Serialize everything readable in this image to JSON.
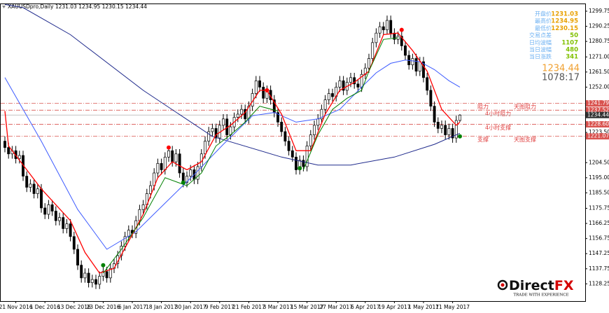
{
  "chart_data": {
    "type": "candlestick",
    "title": "XAUUSDpro,Daily",
    "categories": [
      null,
      null,
      null,
      "21 Nov 2016",
      null,
      null,
      null,
      null,
      null,
      null,
      null,
      "1 Dec 2016",
      null,
      null,
      null,
      null,
      null,
      null,
      null,
      "13 Dec 2016",
      null,
      null,
      null,
      null,
      null,
      null,
      null,
      "23 Dec 2016",
      null,
      null,
      null,
      null,
      null,
      null,
      null,
      "6 Jan 2017",
      null,
      null,
      null,
      null,
      null,
      null,
      null,
      "18 Jan 2017",
      null,
      null,
      null,
      null,
      null,
      null,
      null,
      "30 Jan 2017",
      null,
      null,
      null,
      null,
      null,
      null,
      null,
      "9 Feb 2017",
      null,
      null,
      null,
      null,
      null,
      null,
      null,
      "21 Feb 2017",
      null,
      null,
      null,
      null,
      null,
      null,
      null,
      "3 Mar 2017",
      null,
      null,
      null,
      null,
      null,
      null,
      null,
      "15 Mar 2017",
      null,
      null,
      null,
      null,
      null,
      null,
      null,
      "27 Mar 2017",
      null,
      null,
      null,
      null,
      null,
      null,
      null,
      "6 Apr 2017",
      null,
      null,
      null,
      null,
      null,
      null,
      null,
      "19 Apr 2017",
      null,
      null,
      null,
      null,
      null,
      null,
      null,
      "1 May 2017",
      null,
      null,
      null,
      null,
      null,
      null,
      null,
      "11 May 2017",
      null,
      null
    ],
    "open": [
      1218,
      1214,
      1210,
      1212,
      1207,
      1209,
      1196,
      1189,
      1191,
      1185,
      1188,
      1176,
      1172,
      1178,
      1174,
      1168,
      1170,
      1163,
      1166,
      1158,
      1150,
      1140,
      1132,
      1135,
      1129,
      1131,
      1128,
      1133,
      1136,
      1132,
      1138,
      1141,
      1146,
      1152,
      1158,
      1162,
      1160,
      1168,
      1175,
      1178,
      1185,
      1190,
      1198,
      1204,
      1200,
      1208,
      1212,
      1205,
      1210,
      1198,
      1192,
      1196,
      1200,
      1194,
      1202,
      1210,
      1218,
      1224,
      1226,
      1220,
      1228,
      1232,
      1222,
      1227,
      1233,
      1235,
      1238,
      1232,
      1240,
      1248,
      1256,
      1252,
      1245,
      1250,
      1244,
      1236,
      1230,
      1224,
      1218,
      1212,
      1208,
      1200,
      1206,
      1202,
      1215,
      1222,
      1228,
      1232,
      1238,
      1244,
      1248,
      1246,
      1252,
      1256,
      1250,
      1255,
      1258,
      1254,
      1252,
      1260,
      1264,
      1270,
      1280,
      1286,
      1290,
      1288,
      1294,
      1286,
      1282,
      1284,
      1278,
      1272,
      1266,
      1270,
      1262,
      1268,
      1258,
      1250,
      1240,
      1230,
      1226,
      1228,
      1222,
      1226,
      1220,
      1231.03
    ],
    "high": [
      1221,
      1217,
      1215,
      1215,
      1212,
      1212,
      1199,
      1194,
      1194,
      1191,
      1191,
      1179,
      1181,
      1181,
      1177,
      1173,
      1173,
      1169,
      1169,
      1161,
      1153,
      1143,
      1138,
      1138,
      1134,
      1134,
      1136,
      1139,
      1139,
      1141,
      1144,
      1149,
      1155,
      1161,
      1165,
      1165,
      1171,
      1178,
      1181,
      1188,
      1193,
      1201,
      1207,
      1207,
      1211,
      1215,
      1215,
      1213,
      1213,
      1201,
      1199,
      1203,
      1203,
      1205,
      1213,
      1221,
      1227,
      1229,
      1229,
      1231,
      1235,
      1235,
      1230,
      1236,
      1238,
      1241,
      1241,
      1243,
      1251,
      1259,
      1259,
      1255,
      1253,
      1253,
      1247,
      1239,
      1233,
      1227,
      1221,
      1215,
      1211,
      1209,
      1209,
      1218,
      1225,
      1231,
      1235,
      1241,
      1247,
      1251,
      1251,
      1255,
      1259,
      1259,
      1258,
      1261,
      1261,
      1257,
      1263,
      1267,
      1273,
      1283,
      1289,
      1293,
      1293,
      1297,
      1297,
      1289,
      1287,
      1287,
      1281,
      1275,
      1273,
      1273,
      1271,
      1271,
      1261,
      1253,
      1243,
      1233,
      1231,
      1231,
      1229,
      1229,
      1234,
      1234.95
    ],
    "low": [
      1211,
      1207,
      1207,
      1204,
      1204,
      1193,
      1186,
      1186,
      1182,
      1182,
      1173,
      1169,
      1169,
      1171,
      1165,
      1165,
      1160,
      1160,
      1155,
      1147,
      1137,
      1129,
      1129,
      1126,
      1126,
      1125,
      1125,
      1130,
      1129,
      1129,
      1135,
      1138,
      1143,
      1149,
      1155,
      1157,
      1157,
      1165,
      1172,
      1175,
      1182,
      1187,
      1195,
      1197,
      1197,
      1205,
      1202,
      1202,
      1195,
      1189,
      1189,
      1193,
      1191,
      1191,
      1199,
      1207,
      1215,
      1221,
      1217,
      1217,
      1225,
      1219,
      1219,
      1224,
      1230,
      1232,
      1229,
      1229,
      1237,
      1245,
      1249,
      1242,
      1242,
      1241,
      1233,
      1227,
      1221,
      1215,
      1209,
      1205,
      1197,
      1197,
      1199,
      1199,
      1212,
      1219,
      1225,
      1229,
      1235,
      1241,
      1243,
      1243,
      1249,
      1247,
      1247,
      1252,
      1251,
      1249,
      1249,
      1257,
      1261,
      1267,
      1277,
      1283,
      1285,
      1285,
      1283,
      1279,
      1279,
      1275,
      1269,
      1263,
      1263,
      1259,
      1259,
      1255,
      1247,
      1237,
      1227,
      1223,
      1223,
      1219,
      1219,
      1217,
      1217,
      1230.15
    ],
    "close": [
      1214,
      1210,
      1212,
      1207,
      1209,
      1196,
      1189,
      1191,
      1185,
      1188,
      1176,
      1172,
      1178,
      1174,
      1168,
      1170,
      1163,
      1166,
      1158,
      1150,
      1140,
      1132,
      1135,
      1129,
      1131,
      1128,
      1133,
      1136,
      1132,
      1138,
      1141,
      1146,
      1152,
      1158,
      1162,
      1160,
      1168,
      1175,
      1178,
      1185,
      1190,
      1198,
      1204,
      1200,
      1208,
      1212,
      1205,
      1210,
      1198,
      1192,
      1196,
      1200,
      1194,
      1202,
      1210,
      1218,
      1224,
      1226,
      1220,
      1228,
      1232,
      1222,
      1227,
      1233,
      1235,
      1238,
      1232,
      1240,
      1248,
      1256,
      1252,
      1245,
      1250,
      1244,
      1236,
      1230,
      1224,
      1218,
      1212,
      1208,
      1200,
      1206,
      1202,
      1215,
      1222,
      1228,
      1232,
      1238,
      1244,
      1248,
      1246,
      1252,
      1256,
      1250,
      1255,
      1258,
      1254,
      1252,
      1260,
      1264,
      1270,
      1280,
      1286,
      1290,
      1288,
      1294,
      1286,
      1282,
      1284,
      1278,
      1272,
      1266,
      1270,
      1262,
      1268,
      1258,
      1250,
      1240,
      1230,
      1226,
      1228,
      1222,
      1226,
      1220,
      1231.03,
      1234.44
    ],
    "lines": [
      {
        "color": "#1f2a8c",
        "x": [
          0,
          5,
          18,
          38,
          57,
          76,
          86,
          95,
          107,
          118,
          125
        ],
        "values": [
          1304,
          1302,
          1285,
          1250,
          1221,
          1208,
          1203,
          1203,
          1208,
          1216,
          1223
        ]
      },
      {
        "color": "#3d5bff",
        "x": [
          0,
          10,
          20,
          28,
          36,
          44,
          52,
          60,
          68,
          74,
          80,
          86,
          92,
          98,
          102,
          106,
          110,
          114,
          118,
          122,
          125
        ],
        "values": [
          1258,
          1218,
          1175,
          1150,
          1161,
          1179,
          1197,
          1216,
          1234,
          1236,
          1230,
          1232,
          1238,
          1252,
          1261,
          1267,
          1269,
          1268,
          1263,
          1256,
          1252
        ]
      },
      {
        "color": "#ff0000",
        "x": [
          0,
          1,
          6,
          10,
          14,
          18,
          22,
          26,
          30,
          34,
          38,
          42,
          46,
          50,
          54,
          58,
          62,
          66,
          70,
          72,
          76,
          80,
          84,
          88,
          92,
          96,
          100,
          104,
          108,
          112,
          116,
          120,
          124,
          125
        ],
        "values": [
          1237,
          1215,
          1200,
          1188,
          1178,
          1168,
          1148,
          1135,
          1138,
          1155,
          1172,
          1195,
          1205,
          1200,
          1205,
          1222,
          1228,
          1236,
          1250,
          1250,
          1235,
          1212,
          1212,
          1235,
          1250,
          1255,
          1262,
          1285,
          1286,
          1275,
          1262,
          1238,
          1228,
          1230
        ]
      },
      {
        "color": "#008000",
        "x": [
          27,
          32,
          38,
          44,
          50,
          54,
          58,
          62,
          66,
          70,
          75,
          null,
          82,
          86,
          90,
          94,
          98,
          100,
          104,
          108
        ],
        "values": [
          1135,
          1150,
          1170,
          1195,
          1190,
          1198,
          1215,
          1222,
          1230,
          1240,
          1237,
          null,
          1200,
          1222,
          1238,
          1245,
          1250,
          1262,
          1282,
          1283
        ]
      }
    ],
    "markers": [
      {
        "color": "#ff0000",
        "x": [
          45,
          72,
          109
        ],
        "values": [
          1214,
          1250,
          1288
        ]
      },
      {
        "color": "#008000",
        "x": [
          27,
          49,
          81,
          125
        ],
        "values": [
          1140,
          1192,
          1201,
          1221
        ]
      }
    ],
    "levels": [
      {
        "value": 1241.79,
        "labels": [
          "阻力",
          "天图阻力"
        ]
      },
      {
        "value": 1237.52,
        "labels": [
          "4小时阻力"
        ]
      },
      {
        "value": 1228.6,
        "value_label": "1228.60",
        "labels": [
          "4小时支撑"
        ]
      },
      {
        "value": 1221.07,
        "labels": [
          "支撑",
          "天图支撑"
        ]
      }
    ],
    "ylim": [
      1117.4,
      1304.6
    ],
    "yticks": [
      {
        "value": 1299.75,
        "label": "1299.75"
      },
      {
        "value": 1290.25,
        "label": "1290.25"
      },
      {
        "value": 1280.75,
        "label": "1280.75"
      },
      {
        "value": 1271,
        "label": "1271.00"
      },
      {
        "value": 1261.5,
        "label": "1261.50"
      },
      {
        "value": 1252,
        "label": "1252.00"
      },
      {
        "value": 1223.5,
        "label": "1223.50"
      },
      {
        "value": 1204.5,
        "label": "1204.50"
      },
      {
        "value": 1195,
        "label": "1195.00"
      },
      {
        "value": 1185.5,
        "label": "1185.50"
      },
      {
        "value": 1175.75,
        "label": "1175.75"
      },
      {
        "value": 1166.25,
        "label": "1166.25"
      },
      {
        "value": 1156.75,
        "label": "1156.75"
      },
      {
        "value": 1147.25,
        "label": "1147.25"
      },
      {
        "value": 1137.75,
        "label": "1137.75"
      },
      {
        "value": 1128.25,
        "label": "1128.25"
      }
    ]
  },
  "info_panel": {
    "labels": [
      "开盘价",
      "最高价",
      "最低价",
      "交易点差",
      "日均波幅",
      "当日波幅",
      "当日涨跌"
    ],
    "stats": [
      50,
      1107,
      480,
      341
    ],
    "timer": "1078:17"
  },
  "logo": {
    "name_a": "Direct",
    "name_b": "FX",
    "tagline": "TRADE WITH EXPERIENCE"
  }
}
